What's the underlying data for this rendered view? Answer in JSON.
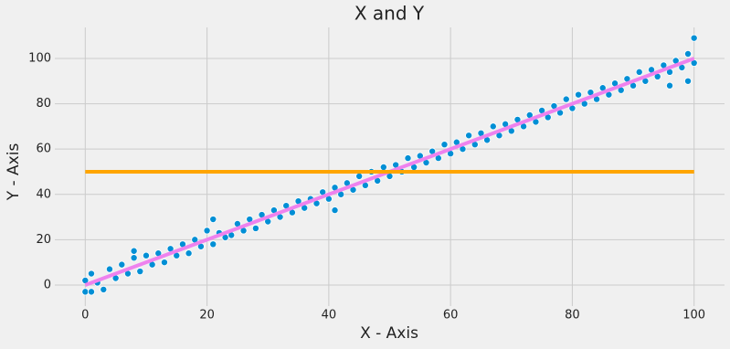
{
  "chart_data": {
    "type": "scatter",
    "title": "X and Y",
    "x_label": "X - Axis",
    "y_label": "Y - Axis",
    "xlim": [
      -5,
      105
    ],
    "ylim": [
      -9.3,
      113.7
    ],
    "xticks": [
      0,
      20,
      40,
      60,
      80,
      100
    ],
    "yticks": [
      0,
      20,
      40,
      60,
      80,
      100
    ],
    "grid": true,
    "series": [
      {
        "type": "scatter",
        "color": "#008fd5",
        "x": [
          0,
          1,
          2,
          3,
          4,
          5,
          6,
          7,
          8,
          9,
          10,
          11,
          12,
          13,
          14,
          15,
          16,
          17,
          18,
          19,
          20,
          21,
          22,
          23,
          24,
          25,
          26,
          27,
          28,
          29,
          30,
          31,
          32,
          33,
          34,
          35,
          36,
          37,
          38,
          39,
          40,
          41,
          42,
          43,
          44,
          45,
          46,
          47,
          48,
          49,
          50,
          51,
          52,
          53,
          54,
          55,
          56,
          57,
          58,
          59,
          60,
          61,
          62,
          63,
          64,
          65,
          66,
          67,
          68,
          69,
          70,
          71,
          72,
          73,
          74,
          75,
          76,
          77,
          78,
          79,
          80,
          81,
          82,
          83,
          84,
          85,
          86,
          87,
          88,
          89,
          90,
          91,
          92,
          93,
          94,
          95,
          96,
          97,
          98,
          99,
          100,
          0,
          1,
          41,
          100,
          96,
          99,
          8,
          21
        ],
        "values": [
          2,
          5,
          1,
          -2,
          7,
          3,
          9,
          5,
          12,
          6,
          13,
          9,
          14,
          10,
          16,
          13,
          18,
          14,
          20,
          17,
          24,
          18,
          23,
          21,
          22,
          27,
          24,
          29,
          25,
          31,
          28,
          33,
          30,
          35,
          32,
          37,
          34,
          38,
          36,
          41,
          38,
          43,
          40,
          45,
          42,
          48,
          44,
          50,
          46,
          52,
          48,
          53,
          50,
          56,
          52,
          57,
          54,
          59,
          56,
          62,
          58,
          63,
          60,
          66,
          62,
          67,
          64,
          70,
          66,
          71,
          68,
          73,
          70,
          75,
          72,
          77,
          74,
          79,
          76,
          82,
          78,
          84,
          80,
          85,
          82,
          87,
          84,
          89,
          86,
          91,
          88,
          94,
          90,
          95,
          92,
          97,
          94,
          99,
          96,
          102,
          98,
          -3,
          -3,
          33,
          109,
          88,
          90,
          15,
          29
        ]
      },
      {
        "type": "line",
        "color": "violet",
        "x": [
          0,
          100
        ],
        "values": [
          0,
          100
        ]
      },
      {
        "type": "line",
        "color": "orange",
        "x": [
          0,
          100
        ],
        "values": [
          50,
          50
        ]
      }
    ]
  }
}
